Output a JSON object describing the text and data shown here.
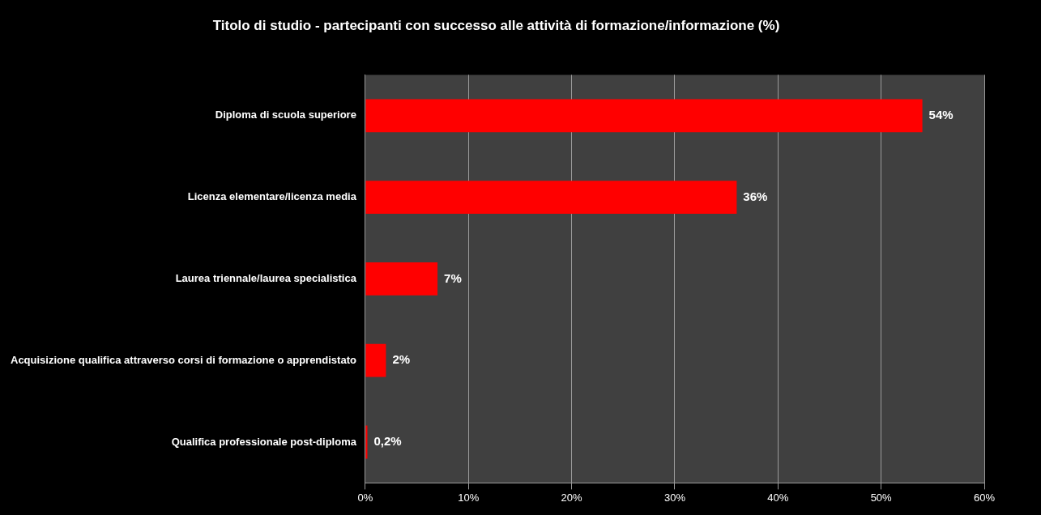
{
  "chart_data": {
    "type": "bar",
    "orientation": "horizontal",
    "title": "Titolo di studio - partecipanti con successo alle attività di formazione/informazione (%)",
    "categories": [
      "Diploma di scuola superiore",
      "Licenza elementare/licenza media",
      "Laurea triennale/laurea specialistica",
      "Acquisizione qualifica attraverso corsi di formazione o apprendistato",
      "Qualifica professionale post-diploma"
    ],
    "values": [
      54,
      36,
      7,
      2,
      0.2
    ],
    "value_labels": [
      "54%",
      "36%",
      "7%",
      "2%",
      "0,2%"
    ],
    "color": "#ff0000",
    "xlim": [
      0,
      60
    ],
    "xticks": [
      {
        "value": 0,
        "label": "0%"
      },
      {
        "value": 10,
        "label": "10%"
      },
      {
        "value": 20,
        "label": "20%"
      },
      {
        "value": 30,
        "label": "30%"
      },
      {
        "value": 40,
        "label": "40%"
      },
      {
        "value": 50,
        "label": "50%"
      },
      {
        "value": 60,
        "label": "60%"
      }
    ],
    "grid": "x",
    "legend": false
  }
}
